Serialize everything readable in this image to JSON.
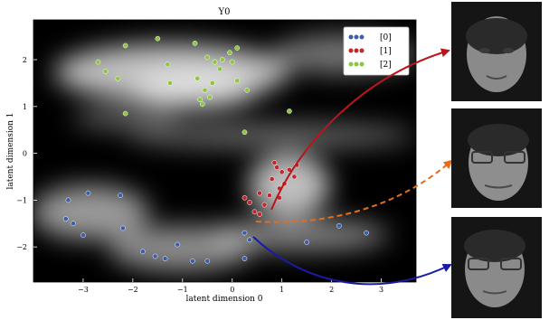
{
  "chart_data": {
    "type": "scatter",
    "title": "Y0",
    "xlabel": "latent dimension 0",
    "ylabel": "latent dimension 1",
    "xlim": [
      -4.0,
      3.7
    ],
    "ylim": [
      -2.75,
      2.85
    ],
    "xticks": [
      -3,
      -2,
      -1,
      0,
      1,
      2,
      3
    ],
    "yticks": [
      -2,
      -1,
      0,
      1,
      2
    ],
    "legend_position": "top-right",
    "grid": false,
    "background": "density heatmap (grayscale)",
    "series": [
      {
        "name": "[0]",
        "color": "#3b5fa8",
        "points": [
          [
            -3.3,
            -1.0
          ],
          [
            -3.2,
            -1.5
          ],
          [
            -3.35,
            -1.4
          ],
          [
            -2.9,
            -0.85
          ],
          [
            -3.0,
            -1.75
          ],
          [
            -2.25,
            -0.9
          ],
          [
            -2.2,
            -1.6
          ],
          [
            -1.8,
            -2.1
          ],
          [
            -1.55,
            -2.2
          ],
          [
            -1.35,
            -2.25
          ],
          [
            -1.1,
            -1.95
          ],
          [
            -0.8,
            -2.3
          ],
          [
            -0.5,
            -2.3
          ],
          [
            0.25,
            -2.25
          ],
          [
            0.35,
            -1.85
          ],
          [
            0.25,
            -1.7
          ],
          [
            1.5,
            -1.9
          ],
          [
            2.15,
            -1.55
          ],
          [
            2.7,
            -1.7
          ]
        ]
      },
      {
        "name": "[1]",
        "color": "#c0282a",
        "points": [
          [
            0.85,
            -0.2
          ],
          [
            0.9,
            -0.3
          ],
          [
            1.0,
            -0.4
          ],
          [
            1.15,
            -0.35
          ],
          [
            1.3,
            -0.25
          ],
          [
            1.25,
            -0.5
          ],
          [
            1.05,
            -0.65
          ],
          [
            0.95,
            -0.75
          ],
          [
            0.8,
            -0.55
          ],
          [
            0.75,
            -0.9
          ],
          [
            0.65,
            -1.1
          ],
          [
            0.55,
            -0.85
          ],
          [
            0.35,
            -1.05
          ],
          [
            0.45,
            -1.25
          ],
          [
            0.55,
            -1.3
          ],
          [
            0.25,
            -0.95
          ],
          [
            0.95,
            -0.95
          ]
        ]
      },
      {
        "name": "[2]",
        "color": "#8dc63f",
        "points": [
          [
            -2.7,
            1.95
          ],
          [
            -2.55,
            1.75
          ],
          [
            -2.3,
            1.6
          ],
          [
            -2.15,
            2.3
          ],
          [
            -2.15,
            0.85
          ],
          [
            -1.5,
            2.45
          ],
          [
            -1.3,
            1.9
          ],
          [
            -1.25,
            1.5
          ],
          [
            -0.75,
            2.35
          ],
          [
            -0.7,
            1.6
          ],
          [
            -0.5,
            2.05
          ],
          [
            -0.35,
            1.95
          ],
          [
            -0.25,
            1.8
          ],
          [
            -0.4,
            1.5
          ],
          [
            -0.45,
            1.2
          ],
          [
            -0.6,
            1.05
          ],
          [
            -0.65,
            1.15
          ],
          [
            -0.55,
            1.35
          ],
          [
            -0.2,
            2.0
          ],
          [
            -0.05,
            2.15
          ],
          [
            0.0,
            1.95
          ],
          [
            0.1,
            2.25
          ],
          [
            0.1,
            1.55
          ],
          [
            0.3,
            1.35
          ],
          [
            0.25,
            0.45
          ],
          [
            1.15,
            0.9
          ]
        ]
      }
    ]
  },
  "annotations": {
    "arrow_colors": [
      "#b8161b",
      "#e46d1a",
      "#1a1aa8"
    ]
  }
}
